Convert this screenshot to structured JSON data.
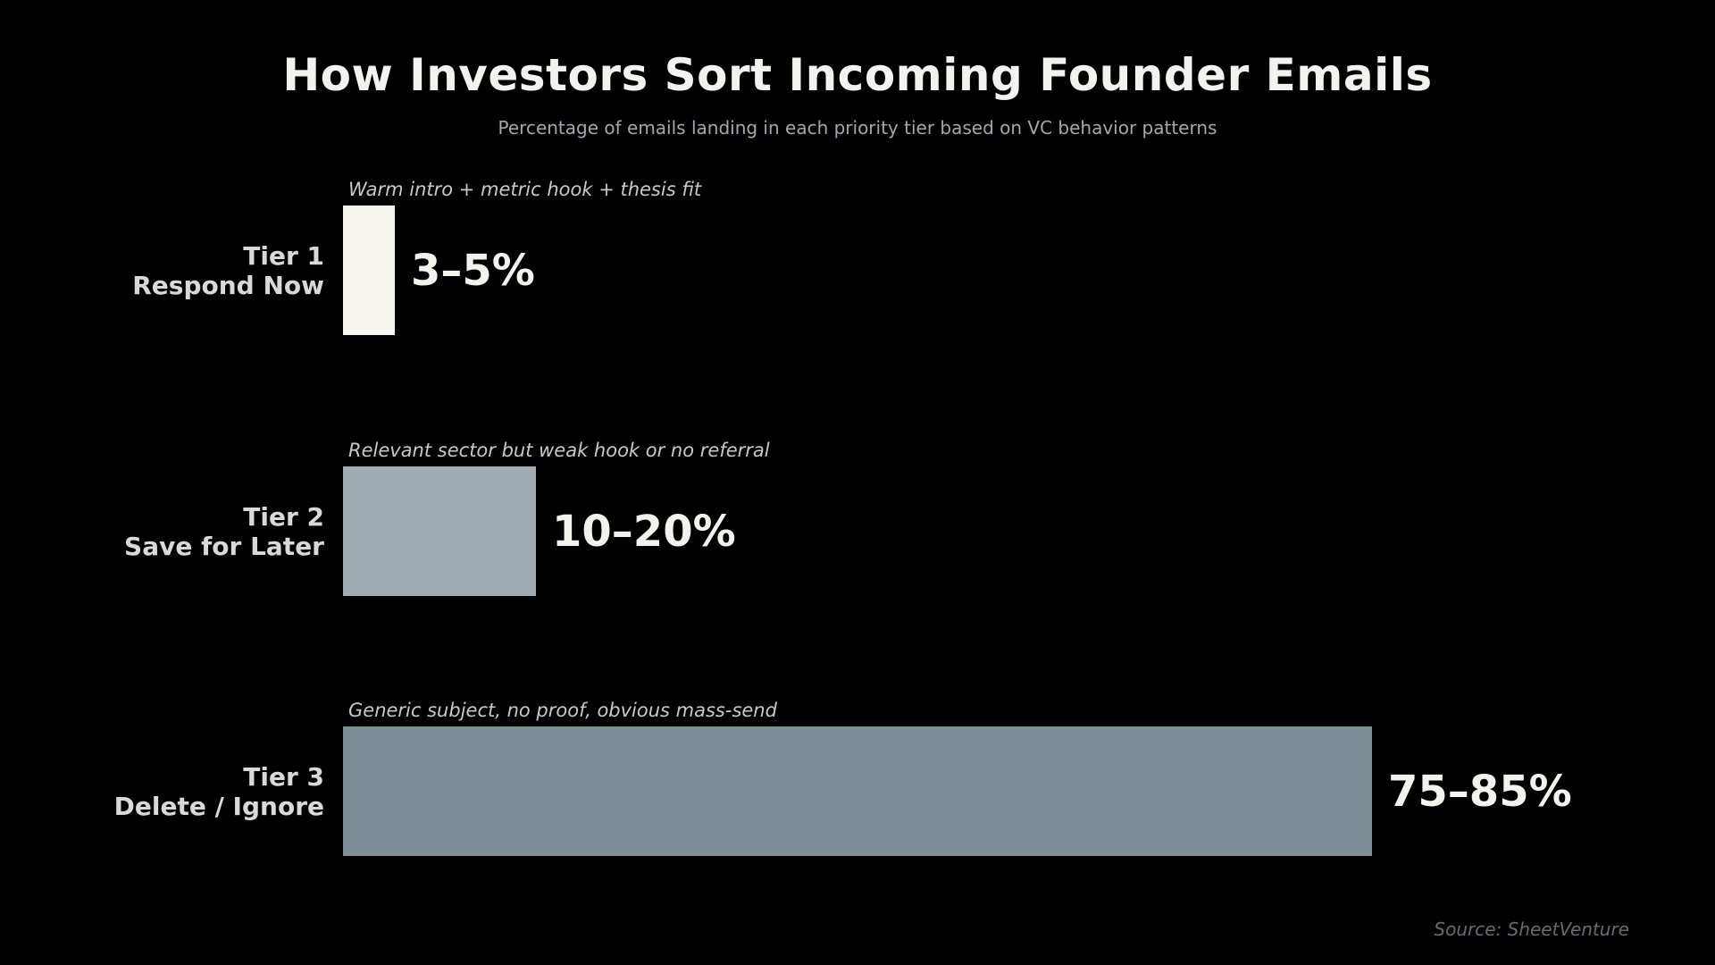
{
  "chart_data": {
    "type": "bar",
    "orientation": "horizontal",
    "title": "How Investors Sort Incoming Founder Emails",
    "subtitle": "Percentage of emails landing in each priority tier based on VC behavior patterns",
    "source": "Source: SheetVenture",
    "xlabel": "",
    "ylabel": "",
    "xlim": [
      0,
      100
    ],
    "grid": false,
    "legend": false,
    "background_color": "#000000",
    "categories": [
      "Tier 1 Respond Now",
      "Tier 2 Save for Later",
      "Tier 3 Delete / Ignore"
    ],
    "bars": [
      {
        "tier": "Tier 1",
        "action": "Respond Now",
        "value_label": "3–5%",
        "range_pct": [
          3,
          5
        ],
        "midpoint_pct": 4,
        "annotation": "Warm intro + metric hook + thesis fit",
        "color": "#f5f4ef"
      },
      {
        "tier": "Tier 2",
        "action": "Save for Later",
        "value_label": "10–20%",
        "range_pct": [
          10,
          20
        ],
        "midpoint_pct": 15,
        "annotation": "Relevant sector but weak hook or no referral",
        "color": "#a2acb2"
      },
      {
        "tier": "Tier 3",
        "action": "Delete / Ignore",
        "value_label": "75–85%",
        "range_pct": [
          75,
          85
        ],
        "midpoint_pct": 80,
        "annotation": "Generic subject, no proof, obvious mass-send",
        "color": "#7c8e96"
      }
    ],
    "text_colors": {
      "title": "#f4f2ee",
      "subtitle": "#a0aaae",
      "tier_label": "#dbd9d5",
      "annotation": "#c6cac7",
      "value": "#f4f2ed",
      "source": "#626d73"
    }
  }
}
